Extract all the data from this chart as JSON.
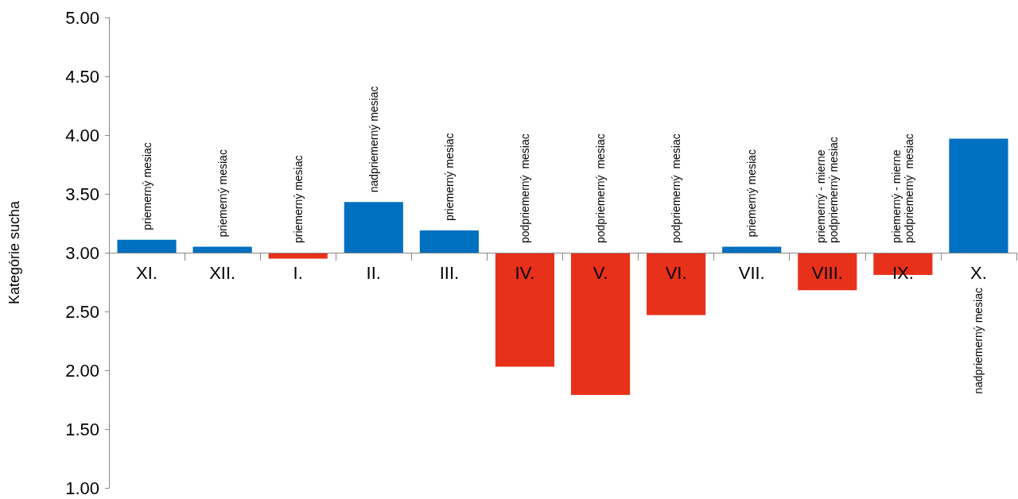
{
  "chart_data": {
    "type": "bar",
    "ylabel": "Kategórie sucha",
    "categories": [
      "XI.",
      "XII.",
      "I.",
      "II.",
      "III.",
      "IV.",
      "V.",
      "VI.",
      "VII.",
      "VIII.",
      "IX.",
      "X."
    ],
    "base": [
      3,
      3,
      3,
      3,
      3,
      3,
      3,
      3,
      3,
      3,
      3,
      3
    ],
    "values": [
      0.11,
      0.05,
      -0.05,
      0.43,
      0.19,
      -0.97,
      -1.21,
      -0.53,
      0.05,
      -0.32,
      -0.19,
      0.97
    ],
    "colors": [
      "#0070c0",
      "#0070c0",
      "#e8311a",
      "#0070c0",
      "#0070c0",
      "#e8311a",
      "#e8311a",
      "#e8311a",
      "#0070c0",
      "#e8311a",
      "#e8311a",
      "#0070c0"
    ],
    "value_labels": [
      "priemerný mesiac",
      "priemerný mesiac",
      "priemerný mesiac",
      "nadpriemerný mesiac",
      "priemerný mesiac",
      "podpriemerný  mesiac",
      "podpriemerný  mesiac",
      "podpriemerný  mesiac",
      "priemerný mesiac",
      "priemerný - mierne\npodpriemerný mesiac",
      "priemerný - mierne\npodpriemerný  mesiac",
      "nadpriemerný mesiac"
    ],
    "ylim": [
      1,
      5
    ],
    "yticks": [
      {
        "value": 1,
        "label": "1.00"
      },
      {
        "value": 1.5,
        "label": "1.50"
      },
      {
        "value": 2,
        "label": "2.00"
      },
      {
        "value": 2.5,
        "label": "2.50"
      },
      {
        "value": 3,
        "label": "3.00"
      },
      {
        "value": 3.5,
        "label": "3.50"
      },
      {
        "value": 4,
        "label": "4.00"
      },
      {
        "value": 4.5,
        "label": "4.50"
      },
      {
        "value": 5,
        "label": "5.00"
      }
    ],
    "grid": false
  }
}
